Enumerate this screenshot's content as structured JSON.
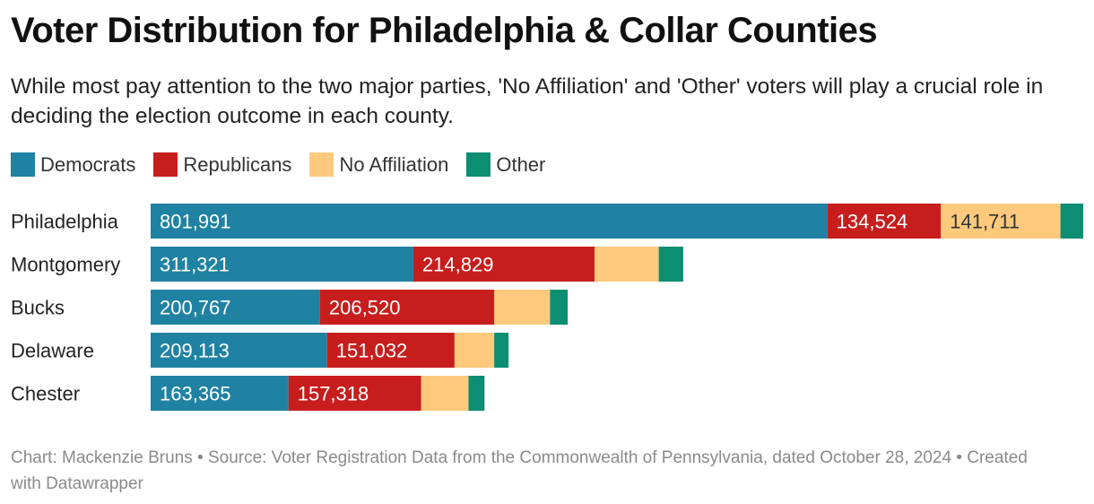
{
  "title": "Voter Distribution for Philadelphia & Collar Counties",
  "subtitle": "While most pay attention to the two major parties, 'No Affiliation' and 'Other' voters will play a crucial role in deciding the election outcome in each county.",
  "footer": "Chart: Mackenzie Bruns • Source: Voter Registration Data from the Commonwealth of Pennsylvania, dated October 28, 2024 • Created with Datawrapper",
  "legend": [
    {
      "label": "Democrats",
      "color": "#1f82a3"
    },
    {
      "label": "Republicans",
      "color": "#c71e1d"
    },
    {
      "label": "No Affiliation",
      "color": "#fdc97c"
    },
    {
      "label": "Other",
      "color": "#0b8e72"
    }
  ],
  "chart_data": {
    "type": "bar",
    "orientation": "horizontal",
    "stacked": true,
    "title": "Voter Distribution for Philadelphia & Collar Counties",
    "categories": [
      "Philadelphia",
      "Montgomery",
      "Bucks",
      "Delaware",
      "Chester"
    ],
    "series": [
      {
        "name": "Democrats",
        "color": "#1f82a3",
        "values": [
          801991,
          311321,
          200767,
          209113,
          163365
        ],
        "show_labels": true
      },
      {
        "name": "Republicans",
        "color": "#c71e1d",
        "values": [
          134524,
          214829,
          206520,
          151032,
          157318
        ],
        "show_labels": true
      },
      {
        "name": "No Affiliation",
        "color": "#fdc97c",
        "values": [
          141711,
          76000,
          66000,
          47000,
          56000
        ],
        "show_labels": [
          true,
          false,
          false,
          false,
          false
        ]
      },
      {
        "name": "Other",
        "color": "#0b8e72",
        "values": [
          27000,
          29000,
          21000,
          17000,
          19000
        ],
        "show_labels": false
      }
    ],
    "xlim": [
      0,
      1105226
    ],
    "grid": false,
    "legend_position": "top-left"
  }
}
